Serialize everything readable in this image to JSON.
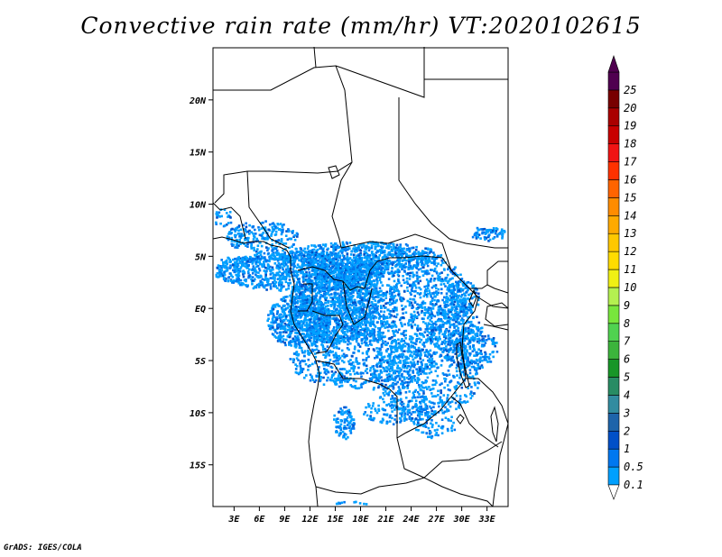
{
  "title": "Convective rain rate (mm/hr) VT:2020102615",
  "credit": "GrADS: IGES/COLA",
  "map": {
    "lat_range": [
      -19,
      25
    ],
    "lon_range": [
      0.5,
      35.5
    ],
    "lat_ticks": [
      "20N",
      "15N",
      "10N",
      "5N",
      "EQ",
      "5S",
      "10S",
      "15S"
    ],
    "lat_values": [
      20,
      15,
      10,
      5,
      0,
      -5,
      -10,
      -15
    ],
    "lon_ticks": [
      "3E",
      "6E",
      "9E",
      "12E",
      "15E",
      "18E",
      "21E",
      "24E",
      "27E",
      "30E",
      "33E"
    ],
    "lon_values": [
      3,
      6,
      9,
      12,
      15,
      18,
      21,
      24,
      27,
      30,
      33
    ]
  },
  "colorbar": {
    "labels": [
      "0.1",
      "0.5",
      "1",
      "2",
      "3",
      "4",
      "5",
      "6",
      "7",
      "8",
      "9",
      "10",
      "11",
      "12",
      "13",
      "14",
      "15",
      "16",
      "17",
      "18",
      "19",
      "20",
      "25"
    ],
    "colors": [
      "#00a0ff",
      "#0078f0",
      "#0050c8",
      "#1e64aa",
      "#328ca0",
      "#288c64",
      "#189628",
      "#3cb43c",
      "#50d250",
      "#78e63c",
      "#b4f050",
      "#f0f014",
      "#ffdc00",
      "#ffc800",
      "#ffaa00",
      "#ff8c00",
      "#ff6400",
      "#ff3200",
      "#f01414",
      "#c80000",
      "#aa0000",
      "#780000",
      "#500050"
    ]
  },
  "rain_colors": [
    "#00a0ff",
    "#0078f0",
    "#0050c8"
  ]
}
